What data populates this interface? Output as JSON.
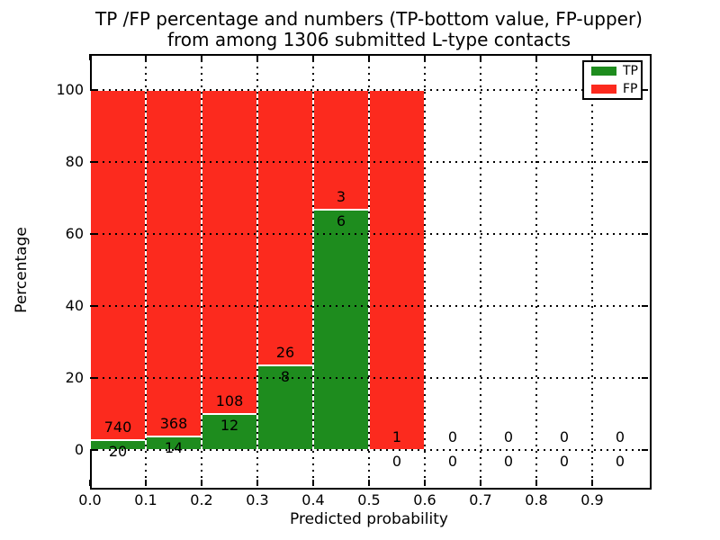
{
  "figure": {
    "title_line1": "TP /FP percentage and numbers (TP-bottom value, FP-upper)",
    "title_line2": "from among 1306 submitted L-type contacts",
    "xlabel": "Predicted probability",
    "ylabel": "Percentage",
    "total_contacts": 1306
  },
  "legend": {
    "position": "upper right",
    "items": [
      {
        "label": "TP",
        "color": "#1e8c1e"
      },
      {
        "label": "FP",
        "color": "#fc2a1e"
      }
    ]
  },
  "chart_data": {
    "type": "bar",
    "stacked": true,
    "normalized": "percent of bin total (TP+FP = 100%)",
    "title": "TP /FP percentage and numbers (TP-bottom value, FP-upper) from among 1306 submitted L-type contacts",
    "xlabel": "Predicted probability",
    "ylabel": "Percentage",
    "xlim": [
      0.0,
      1.0
    ],
    "ylim": [
      -10,
      110
    ],
    "bin_width": 0.1,
    "bin_edges": [
      0.0,
      0.1,
      0.2,
      0.3,
      0.4,
      0.5,
      0.6,
      0.7,
      0.8,
      0.9,
      1.0
    ],
    "categories": [
      "0.0-0.1",
      "0.1-0.2",
      "0.2-0.3",
      "0.3-0.4",
      "0.4-0.5",
      "0.5-0.6",
      "0.6-0.7",
      "0.7-0.8",
      "0.8-0.9",
      "0.9-1.0"
    ],
    "series": [
      {
        "name": "TP",
        "color": "#1e8c1e",
        "counts": [
          20,
          14,
          12,
          8,
          6,
          0,
          0,
          0,
          0,
          0
        ]
      },
      {
        "name": "FP",
        "color": "#fc2a1e",
        "counts": [
          740,
          368,
          108,
          26,
          3,
          1,
          0,
          0,
          0,
          0
        ]
      }
    ],
    "tp_percent_by_bin": [
      2.6,
      3.7,
      10.0,
      23.5,
      66.7,
      0.0,
      0.0,
      0.0,
      0.0,
      0.0
    ],
    "annotation_rule": "FP count above TP/FP boundary, TP count below boundary",
    "yticks": [
      0,
      20,
      40,
      60,
      80,
      100
    ],
    "xtick_labels": [
      "0.0",
      "0.1",
      "0.2",
      "0.3",
      "0.4",
      "0.5",
      "0.6",
      "0.7",
      "0.8",
      "0.9"
    ],
    "grid": "dotted, both axes",
    "legend_position": "upper right"
  }
}
